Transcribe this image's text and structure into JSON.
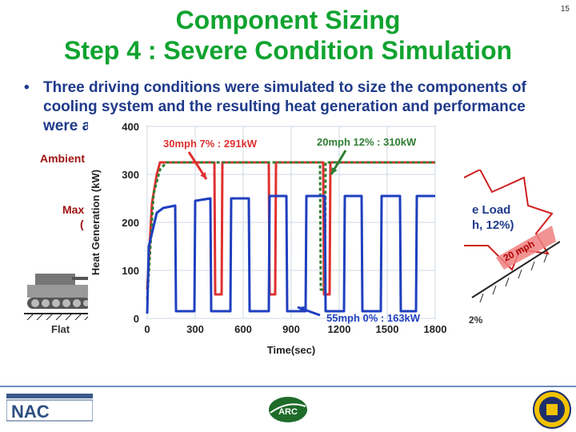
{
  "slide": {
    "title_line1": "Component Sizing",
    "title_line2": "Step 4 : Severe Condition Simulation",
    "page_number": "15",
    "bullet": "Three driving conditions were simulated to size the components of cooling system and the resulting heat generation and performance were analyzed.",
    "left_labels": [
      "Ambient",
      "Max",
      "("
    ],
    "flat_label": "Flat",
    "right_callout_line1": "e Load",
    "right_callout_line2": "h, 12%)",
    "slope_text": "20 mph",
    "grade_text": "2%",
    "arc_logo_text": "ARC"
  },
  "chart_data": {
    "type": "line",
    "title": "",
    "xlabel": "Time(sec)",
    "ylabel": "Heat Generation (kW)",
    "xlim": [
      0,
      1800
    ],
    "ylim": [
      0,
      400
    ],
    "x_ticks": [
      0,
      300,
      600,
      900,
      1200,
      1500,
      1800
    ],
    "y_ticks": [
      0,
      100,
      200,
      300,
      400
    ],
    "grid": true,
    "series": [
      {
        "name": "30mph 7%",
        "color": "#e03030",
        "style": "solid",
        "points": [
          [
            0,
            60
          ],
          [
            30,
            240
          ],
          [
            60,
            300
          ],
          [
            80,
            325
          ],
          [
            420,
            325
          ],
          [
            425,
            50
          ],
          [
            465,
            50
          ],
          [
            470,
            325
          ],
          [
            760,
            325
          ],
          [
            765,
            50
          ],
          [
            800,
            50
          ],
          [
            805,
            325
          ],
          [
            1100,
            325
          ],
          [
            1105,
            50
          ],
          [
            1140,
            50
          ],
          [
            1145,
            325
          ],
          [
            1800,
            325
          ]
        ]
      },
      {
        "name": "20mph 12%",
        "color": "#2e7d32",
        "style": "dashed",
        "points": [
          [
            0,
            40
          ],
          [
            40,
            260
          ],
          [
            80,
            310
          ],
          [
            120,
            325
          ],
          [
            1080,
            325
          ],
          [
            1085,
            60
          ],
          [
            1110,
            60
          ],
          [
            1115,
            325
          ],
          [
            1800,
            325
          ]
        ]
      },
      {
        "name": "55mph 0%",
        "color": "#1f3fbf",
        "style": "solid",
        "points": [
          [
            0,
            10
          ],
          [
            10,
            150
          ],
          [
            60,
            220
          ],
          [
            100,
            230
          ],
          [
            175,
            235
          ],
          [
            180,
            15
          ],
          [
            295,
            15
          ],
          [
            300,
            245
          ],
          [
            395,
            250
          ],
          [
            400,
            15
          ],
          [
            520,
            15
          ],
          [
            525,
            250
          ],
          [
            635,
            250
          ],
          [
            640,
            15
          ],
          [
            760,
            15
          ],
          [
            765,
            255
          ],
          [
            870,
            255
          ],
          [
            875,
            15
          ],
          [
            990,
            15
          ],
          [
            995,
            255
          ],
          [
            1110,
            255
          ],
          [
            1115,
            15
          ],
          [
            1230,
            15
          ],
          [
            1235,
            255
          ],
          [
            1340,
            255
          ],
          [
            1345,
            15
          ],
          [
            1460,
            15
          ],
          [
            1465,
            255
          ],
          [
            1580,
            255
          ],
          [
            1585,
            15
          ],
          [
            1680,
            15
          ],
          [
            1685,
            255
          ],
          [
            1800,
            255
          ]
        ]
      }
    ],
    "annotations": [
      {
        "text": "30mph 7% : 291kW",
        "color": "#e03030"
      },
      {
        "text": "20mph 12% : 310kW",
        "color": "#2e7d32"
      },
      {
        "text": "55mph 0% : 163kW",
        "color": "#1f3fbf"
      }
    ]
  }
}
